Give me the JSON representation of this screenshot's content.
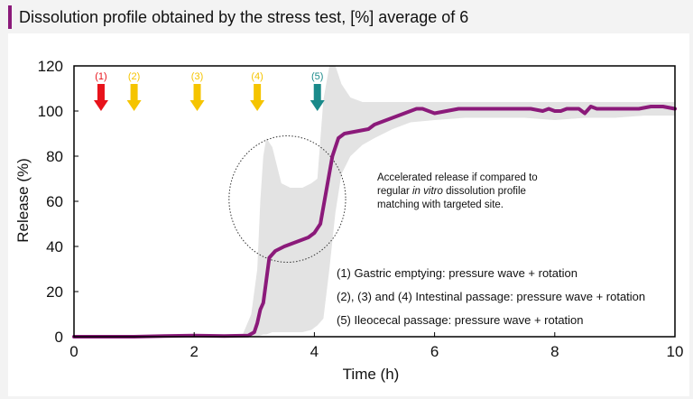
{
  "title": "Dissolution profile obtained by the stress test, [%] average of 6",
  "chart_data": {
    "type": "line",
    "xlabel": "Time (h)",
    "ylabel": "Release (%)",
    "xlim": [
      0,
      10
    ],
    "ylim": [
      0,
      120
    ],
    "x_ticks": [
      0,
      2,
      4,
      6,
      8,
      10
    ],
    "y_ticks": [
      0,
      20,
      40,
      60,
      80,
      100,
      120
    ],
    "grid": false,
    "series": [
      {
        "color": "#8b1a7a",
        "x": [
          0,
          0.5,
          1,
          1.5,
          2,
          2.5,
          2.9,
          3.0,
          3.05,
          3.1,
          3.15,
          3.2,
          3.25,
          3.35,
          3.5,
          3.7,
          3.9,
          4.0,
          4.1,
          4.2,
          4.3,
          4.4,
          4.5,
          4.7,
          4.9,
          5.0,
          5.1,
          5.3,
          5.5,
          5.7,
          5.8,
          5.9,
          6.0,
          6.2,
          6.4,
          6.6,
          6.8,
          7.0,
          7.2,
          7.4,
          7.6,
          7.8,
          7.9,
          8.0,
          8.1,
          8.2,
          8.4,
          8.5,
          8.6,
          8.7,
          8.8,
          9.0,
          9.2,
          9.4,
          9.6,
          9.8,
          10.0
        ],
        "y": [
          0,
          0,
          0,
          0.3,
          0.5,
          0.3,
          0.5,
          2,
          6,
          12,
          15,
          25,
          35,
          38,
          40,
          42,
          44,
          46,
          50,
          65,
          80,
          88,
          90,
          91,
          92,
          94,
          95,
          97,
          99,
          101,
          101,
          100,
          99,
          100,
          101,
          101,
          101,
          101,
          101,
          101,
          101,
          100,
          101,
          100,
          100,
          101,
          101,
          99,
          102,
          101,
          101,
          101,
          101,
          101,
          102,
          102,
          101
        ]
      }
    ],
    "range_band": {
      "color": "#e3e3e3",
      "x": [
        0,
        2.8,
        2.95,
        3.05,
        3.1,
        3.15,
        3.2,
        3.3,
        3.45,
        3.6,
        3.8,
        3.95,
        4.05,
        4.15,
        4.25,
        4.35,
        4.45,
        4.6,
        4.8,
        5.0,
        5.3,
        5.6,
        6.0,
        6.5,
        7.0,
        7.5,
        8.0,
        8.5,
        9.0,
        9.5,
        10.0
      ],
      "lower": [
        0,
        0,
        0,
        0,
        0.5,
        1,
        1,
        2,
        2,
        2,
        2,
        3,
        5,
        8,
        30,
        55,
        72,
        80,
        85,
        88,
        92,
        95,
        96,
        97,
        97,
        97,
        96,
        97,
        97,
        98,
        98
      ],
      "upper": [
        0,
        0.5,
        10,
        30,
        60,
        80,
        88,
        84,
        68,
        66,
        66,
        68,
        70,
        105,
        120,
        120,
        112,
        106,
        104,
        104,
        104,
        104,
        104,
        104,
        104,
        104,
        104,
        104,
        104,
        104,
        104
      ]
    },
    "arrows": [
      {
        "label": "(1)",
        "x": 0.45,
        "color": "#e8131b"
      },
      {
        "label": "(2)",
        "x": 1.0,
        "color": "#f5c400"
      },
      {
        "label": "(3)",
        "x": 2.05,
        "color": "#f5c400"
      },
      {
        "label": "(4)",
        "x": 3.05,
        "color": "#f5c400"
      },
      {
        "label": "(5)",
        "x": 4.05,
        "color": "#1a8a8a"
      }
    ],
    "highlight_circle": {
      "cx": 3.55,
      "cy": 61,
      "rx": 0.97,
      "ry": 28
    },
    "annotation": {
      "lines": [
        [
          "Accelerated release if compared to"
        ],
        [
          "regular ",
          "in vitro",
          " dissolution profile"
        ],
        [
          "matching with targeted site."
        ]
      ],
      "italic_index": 1
    },
    "legend_notes": [
      "(1) Gastric emptying: pressure wave + rotation",
      "(2), (3) and (4) Intestinal passage: pressure wave + rotation",
      "(5) Ileocecal passage: pressure wave + rotation"
    ]
  }
}
